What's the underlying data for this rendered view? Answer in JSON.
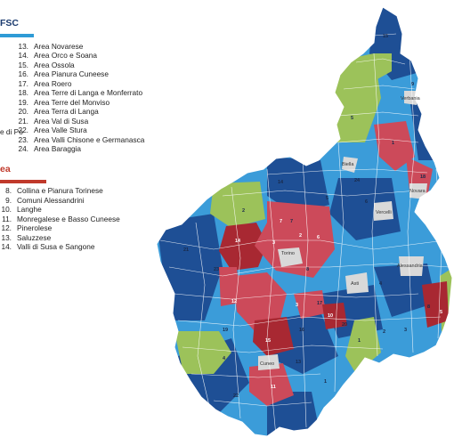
{
  "legend_fsc": {
    "heading": "FSC",
    "items": [
      {
        "num": "13.",
        "label": "Area Novarese"
      },
      {
        "num": "14.",
        "label": "Area Orco e Soana"
      },
      {
        "num": "15.",
        "label": "Area Ossola"
      },
      {
        "num": "16.",
        "label": "Area Pianura Cuneese"
      },
      {
        "num": "17.",
        "label": "Area Roero"
      },
      {
        "num": "18.",
        "label": "Area Terre di Langa e Monferrato"
      },
      {
        "num": "19.",
        "label": "Area Terre del Monviso"
      },
      {
        "num": "20.",
        "label": "Area Terra di Langa"
      },
      {
        "num": "21.",
        "label": "Area Val di Susa"
      },
      {
        "num": "22.",
        "label": "Area Valle Stura"
      },
      {
        "num": "23.",
        "label": "Area Valli Chisone e Germanasca"
      },
      {
        "num": "24.",
        "label": "Area Baraggia"
      }
    ],
    "cut_text": "e di Po"
  },
  "legend_area": {
    "heading": "ea",
    "items": [
      {
        "num": "8.",
        "label": "Collina e Pianura Torinese"
      },
      {
        "num": "9.",
        "label": "Comuni Alessandrini"
      },
      {
        "num": "10.",
        "label": "Langhe"
      },
      {
        "num": "11.",
        "label": "Monregalese e Basso Cuneese"
      },
      {
        "num": "12.",
        "label": "Pinerolese"
      },
      {
        "num": "13.",
        "label": "Saluzzese"
      },
      {
        "num": "14.",
        "label": "Valli di Susa e Sangone"
      }
    ]
  },
  "cities": {
    "torino": "Torino",
    "biella": "Biella",
    "vercelli": "Vercelli",
    "novara": "Novara",
    "asti": "Asti",
    "alessandria": "Alessandria",
    "cuneo": "Cuneo",
    "verbania": "Verbania"
  },
  "markers": [
    "15",
    "9",
    "5",
    "1",
    "14",
    "2",
    "24",
    "6",
    "18",
    "7",
    "3",
    "2",
    "8",
    "6",
    "4",
    "5",
    "14",
    "21",
    "23",
    "12",
    "19",
    "15",
    "16",
    "17",
    "3",
    "10",
    "7",
    "4",
    "1",
    "20",
    "13",
    "11",
    "22",
    "8",
    "5",
    "3",
    "2",
    "1"
  ],
  "colors": {
    "fsc_dark": "#1e4f95",
    "fsc_light": "#3b9cd9",
    "area_red": "#cc4a5a",
    "area_darkred": "#a82832",
    "green": "#9cc25a",
    "city": "#d9d9d9",
    "heading_fsc": "#1a3a6e",
    "heading_area": "#c0392b"
  }
}
